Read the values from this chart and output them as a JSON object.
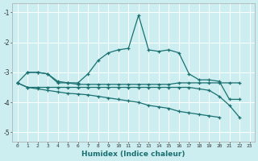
{
  "xlabel": "Humidex (Indice chaleur)",
  "background_color": "#cceef0",
  "line_color": "#1a7070",
  "grid_color": "#ffffff",
  "xlim": [
    -0.5,
    23.5
  ],
  "ylim": [
    -5.3,
    -0.7
  ],
  "yticks": [
    -5,
    -4,
    -3,
    -2,
    -1
  ],
  "xticks": [
    0,
    1,
    2,
    3,
    4,
    5,
    6,
    7,
    8,
    9,
    10,
    11,
    12,
    13,
    14,
    15,
    16,
    17,
    18,
    19,
    20,
    21,
    22,
    23
  ],
  "s1": [
    null,
    -3.0,
    -3.0,
    -3.05,
    -3.3,
    -3.35,
    -3.35,
    -3.05,
    -2.6,
    -2.35,
    -2.25,
    -2.2,
    -1.1,
    -2.25,
    -2.3,
    -2.25,
    -2.35,
    -3.05,
    -3.25,
    -3.25,
    -3.3,
    -3.9,
    -3.9,
    null
  ],
  "s2": [
    -3.35,
    -3.0,
    -3.0,
    -3.05,
    -3.35,
    -3.35,
    -3.4,
    -3.4,
    -3.4,
    -3.4,
    -3.4,
    -3.4,
    -3.4,
    -3.4,
    -3.4,
    -3.4,
    -3.35,
    -3.35,
    -3.35,
    -3.35,
    -3.35,
    -3.35,
    -3.35,
    null
  ],
  "s3": [
    -3.35,
    -3.5,
    -3.5,
    -3.5,
    -3.5,
    -3.5,
    -3.5,
    -3.5,
    -3.5,
    -3.5,
    -3.5,
    -3.5,
    -3.5,
    -3.5,
    -3.5,
    -3.5,
    -3.5,
    -3.5,
    -3.55,
    -3.6,
    -3.8,
    -4.1,
    -4.5,
    null
  ],
  "s4": [
    -3.35,
    -3.5,
    -3.55,
    -3.6,
    -3.65,
    -3.7,
    -3.72,
    -3.75,
    -3.8,
    -3.85,
    -3.9,
    -3.95,
    -4.0,
    -4.1,
    -4.15,
    -4.2,
    -4.3,
    -4.35,
    -4.4,
    -4.45,
    -4.5,
    null,
    null,
    null
  ]
}
